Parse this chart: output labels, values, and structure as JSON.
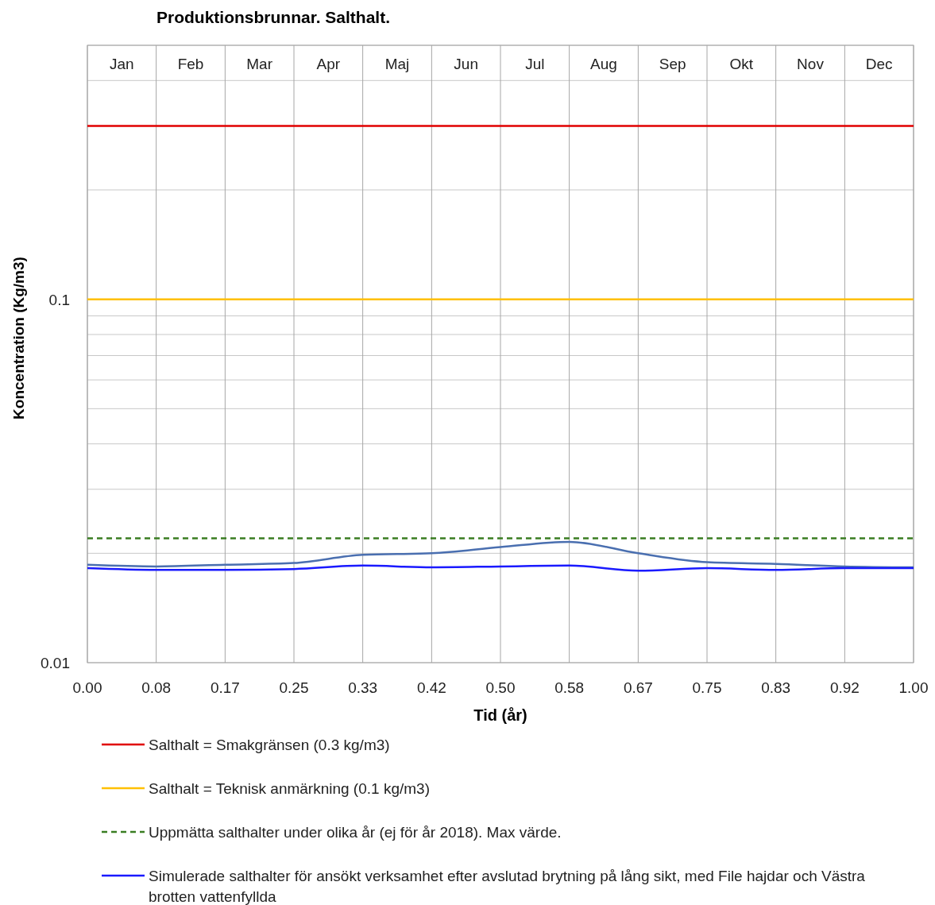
{
  "chart_data": {
    "type": "line",
    "title": "Produktionsbrunnar. Salthalt.",
    "xlabel": "Tid (år)",
    "ylabel": "Koncentration (Kg/m3)",
    "log": "y",
    "grid": true,
    "legend": "bottom",
    "xlim": [
      0,
      1
    ],
    "ylim": [
      0.01,
      0.5
    ],
    "xticks": [
      {
        "value": 0,
        "label": "0.00"
      },
      {
        "value": 0.0833,
        "label": "0.08"
      },
      {
        "value": 0.1667,
        "label": "0.17"
      },
      {
        "value": 0.25,
        "label": "0.25"
      },
      {
        "value": 0.3333,
        "label": "0.33"
      },
      {
        "value": 0.4167,
        "label": "0.42"
      },
      {
        "value": 0.5,
        "label": "0.50"
      },
      {
        "value": 0.5833,
        "label": "0.58"
      },
      {
        "value": 0.6667,
        "label": "0.67"
      },
      {
        "value": 0.75,
        "label": "0.75"
      },
      {
        "value": 0.8333,
        "label": "0.83"
      },
      {
        "value": 0.9167,
        "label": "0.92"
      },
      {
        "value": 1,
        "label": "1.00"
      }
    ],
    "annotations": [
      "Jan",
      "Feb",
      "Mar",
      "Apr",
      "Maj",
      "Jun",
      "Jul",
      "Aug",
      "Sep",
      "Okt",
      "Nov",
      "Dec"
    ],
    "yticks": [
      0.01,
      {
        "value": 0.02,
        "label": null
      },
      {
        "value": 0.03,
        "label": null
      },
      {
        "value": 0.04,
        "label": null
      },
      {
        "value": 0.05,
        "label": null
      },
      {
        "value": 0.06,
        "label": null
      },
      {
        "value": 0.07,
        "label": null
      },
      {
        "value": 0.08,
        "label": null
      },
      {
        "value": 0.09,
        "label": null
      },
      0.1,
      {
        "value": 0.2,
        "label": null
      },
      {
        "value": 0.4,
        "label": null
      },
      {
        "value": 0.5,
        "label": null
      }
    ],
    "x": [
      0,
      0.0833,
      0.1667,
      0.25,
      0.3333,
      0.4167,
      0.5,
      0.5833,
      0.6667,
      0.75,
      0.8333,
      0.9167,
      1
    ],
    "series": [
      {
        "name": "Salthalt = Smakgränsen (0.3 kg/m3)",
        "color": "#e00000",
        "values": [
          0.3,
          0.3,
          0.3,
          0.3,
          0.3,
          0.3,
          0.3,
          0.3,
          0.3,
          0.3,
          0.3,
          0.3,
          0.3
        ]
      },
      {
        "name": "Salthalt = Teknisk anmärkning (0.1 kg/m3)",
        "color": "#ffc000",
        "values": [
          0.1,
          0.1,
          0.1,
          0.1,
          0.1,
          0.1,
          0.1,
          0.1,
          0.1,
          0.1,
          0.1,
          0.1,
          0.1
        ]
      },
      {
        "name": "Uppmätta salthalter under olika år (ej för år 2018).  Max värde.",
        "color": "#3a7d22",
        "line_style": "dashed",
        "values": [
          0.022,
          0.022,
          0.022,
          0.022,
          0.022,
          0.022,
          0.022,
          0.022,
          0.022,
          0.022,
          0.022,
          0.022,
          0.022
        ]
      },
      {
        "color": "#4a6fb0",
        "values": [
          0.0186,
          0.0184,
          0.0186,
          0.0188,
          0.0198,
          0.02,
          0.0208,
          0.0215,
          0.02,
          0.0189,
          0.0187,
          0.0184,
          0.0183
        ]
      },
      {
        "name": "Simulerade salthalter för ansökt verksamhet efter avslutad brytning på lång sikt, med File hajdar och Västra brotten vattenfyllda",
        "color": "#1a1aff",
        "values": [
          0.0182,
          0.018,
          0.018,
          0.0181,
          0.0185,
          0.0183,
          0.0184,
          0.0185,
          0.0179,
          0.0182,
          0.018,
          0.0182,
          0.0182
        ]
      }
    ]
  }
}
